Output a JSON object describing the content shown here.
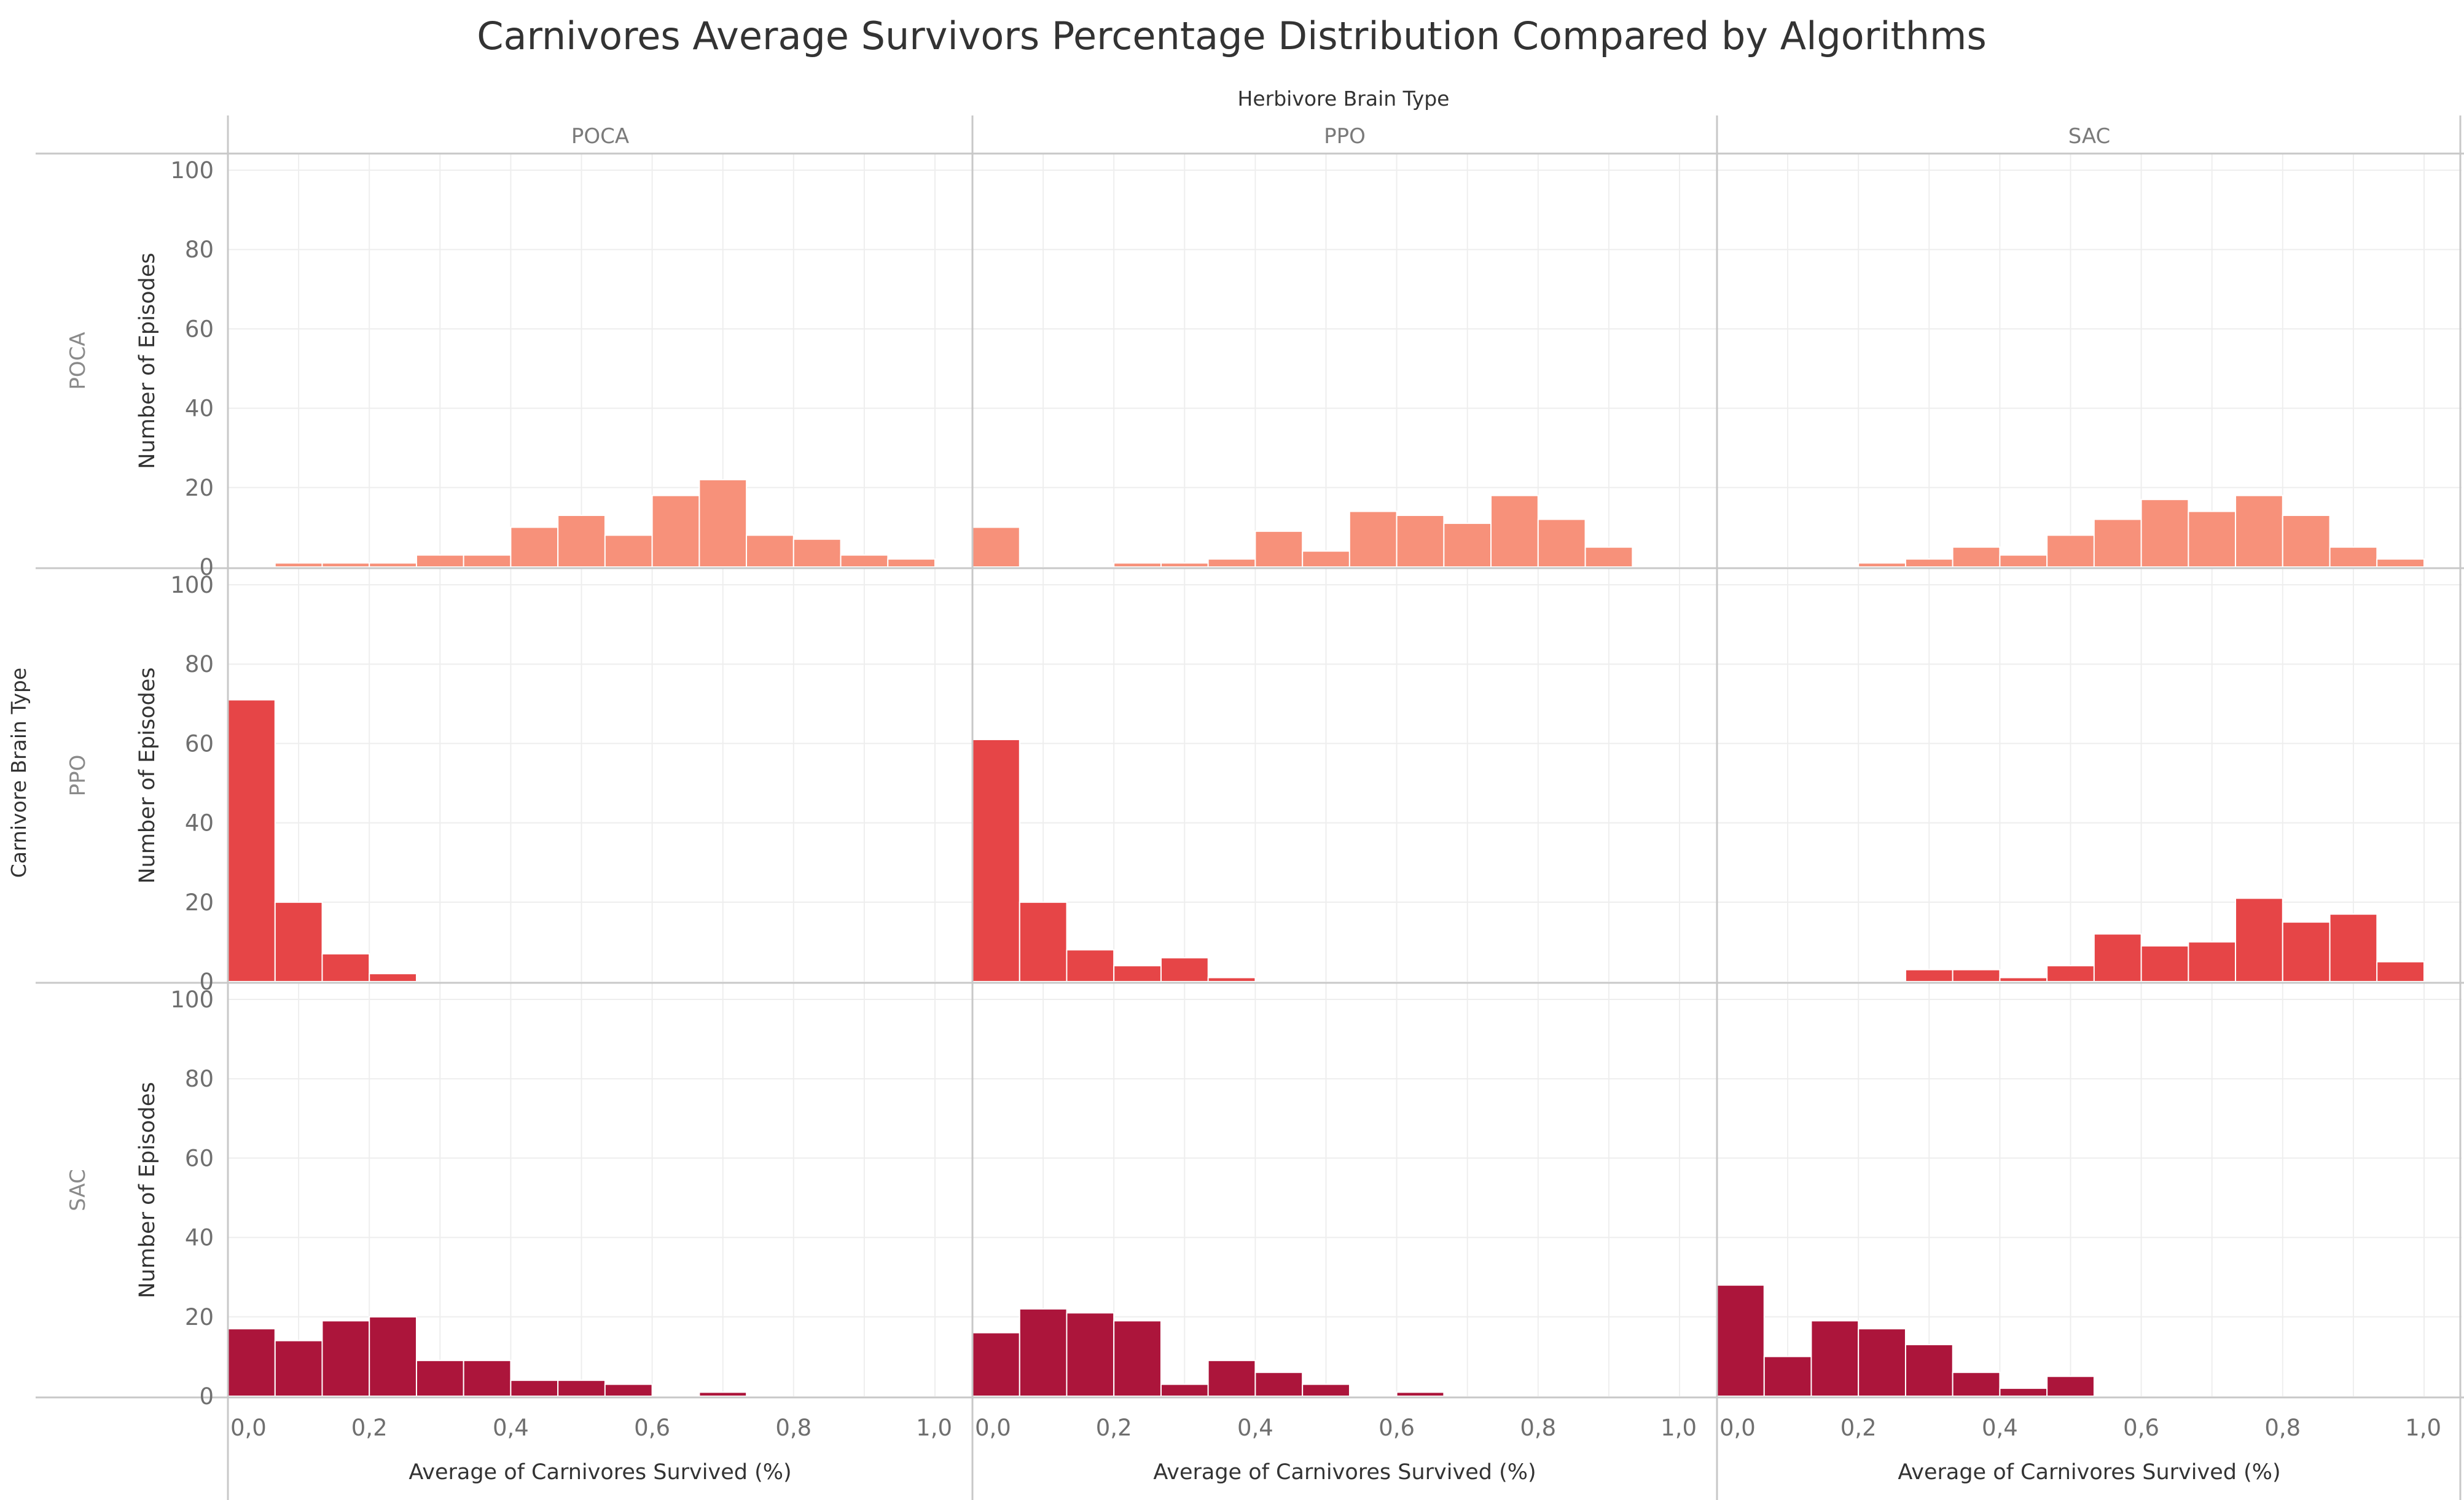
{
  "title": "Carnivores Average Survivors Percentage Distribution Compared by Algorithms",
  "column_header_title": "Herbivore Brain Type",
  "row_header_title": "Carnivore Brain Type",
  "columns": [
    "POCA",
    "PPO",
    "SAC"
  ],
  "rows": [
    "POCA",
    "PPO",
    "SAC"
  ],
  "y_axis_label": "Number of Episodes",
  "x_axis_label": "Average of Carnivores Survived (%)",
  "y_ticks": [
    "100",
    "80",
    "60",
    "40",
    "20",
    "0"
  ],
  "x_ticks": [
    "0,0",
    "0,2",
    "0,4",
    "0,6",
    "0,8",
    "1,0"
  ],
  "colors": {
    "POCA": "#f7917a",
    "PPO": "#e64547",
    "SAC": "#ac153b",
    "grid": "#eeeeee",
    "divider": "#c8c8c8"
  },
  "chart_data": {
    "type": "bar",
    "subtype": "histogram small multiples",
    "xlabel": "Average of Carnivores Survived (%)",
    "ylabel": "Number of Episodes",
    "xlim": [
      0,
      1.0
    ],
    "ylim": [
      0,
      100
    ],
    "bin_width": 0.0667,
    "bin_starts": [
      0.0,
      0.0667,
      0.1333,
      0.2,
      0.2667,
      0.3333,
      0.4,
      0.4667,
      0.5333,
      0.6,
      0.6667,
      0.7333,
      0.8,
      0.8667,
      0.9333
    ],
    "panels": [
      {
        "carnivore": "POCA",
        "herbivore": "POCA",
        "values": [
          0,
          1,
          1,
          1,
          3,
          3,
          10,
          13,
          8,
          18,
          22,
          8,
          7,
          3,
          2
        ]
      },
      {
        "carnivore": "POCA",
        "herbivore": "PPO",
        "values": [
          10,
          0,
          0,
          1,
          1,
          2,
          9,
          4,
          14,
          13,
          11,
          18,
          12,
          5,
          0
        ]
      },
      {
        "carnivore": "POCA",
        "herbivore": "SAC",
        "values": [
          0,
          0,
          0,
          1,
          2,
          5,
          3,
          8,
          12,
          17,
          14,
          18,
          13,
          5,
          2
        ]
      },
      {
        "carnivore": "PPO",
        "herbivore": "POCA",
        "values": [
          71,
          20,
          7,
          2,
          0,
          0,
          0,
          0,
          0,
          0,
          0,
          0,
          0,
          0,
          0
        ]
      },
      {
        "carnivore": "PPO",
        "herbivore": "PPO",
        "values": [
          61,
          20,
          8,
          4,
          6,
          1,
          0,
          0,
          0,
          0,
          0,
          0,
          0,
          0,
          0
        ]
      },
      {
        "carnivore": "PPO",
        "herbivore": "SAC",
        "values": [
          0,
          0,
          0,
          0,
          3,
          3,
          1,
          4,
          12,
          9,
          10,
          21,
          15,
          17,
          5
        ]
      },
      {
        "carnivore": "SAC",
        "herbivore": "POCA",
        "values": [
          17,
          14,
          19,
          20,
          9,
          9,
          4,
          4,
          3,
          0,
          1,
          0,
          0,
          0,
          0
        ]
      },
      {
        "carnivore": "SAC",
        "herbivore": "PPO",
        "values": [
          16,
          22,
          21,
          19,
          3,
          9,
          6,
          3,
          0,
          1,
          0,
          0,
          0,
          0,
          0
        ]
      },
      {
        "carnivore": "SAC",
        "herbivore": "SAC",
        "values": [
          28,
          10,
          19,
          17,
          13,
          6,
          2,
          5,
          0,
          0,
          0,
          0,
          0,
          0,
          0
        ]
      }
    ]
  }
}
